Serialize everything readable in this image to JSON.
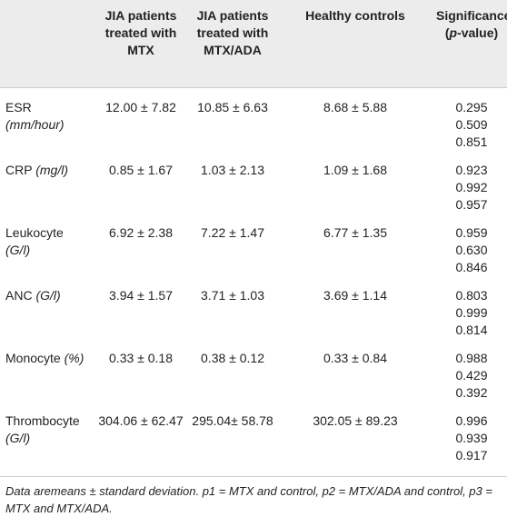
{
  "table": {
    "header": [
      "",
      "JIA patients treated with MTX",
      "JIA patients treated with MTX/ADA",
      "Healthy controls",
      {
        "text": "Significance",
        "open": "(",
        "italic": "p",
        "rest": "-value)"
      }
    ],
    "rows": [
      {
        "name": "ESR",
        "unit": "(mm/hour)",
        "cells": [
          "12.00 ± 7.82",
          "10.85 ± 6.63",
          "8.68 ± 5.88"
        ],
        "p": [
          "0.295",
          "0.509",
          "0.851"
        ]
      },
      {
        "name": "CRP",
        "unit": "(mg/l)",
        "cells": [
          "0.85 ± 1.67",
          "1.03 ± 2.13",
          "1.09 ± 1.68"
        ],
        "p": [
          "0.923",
          "0.992",
          "0.957"
        ]
      },
      {
        "name": "Leukocyte",
        "unit": "(G/l)",
        "cells": [
          "6.92 ± 2.38",
          "7.22 ± 1.47",
          "6.77 ± 1.35"
        ],
        "p": [
          "0.959",
          "0.630",
          "0.846"
        ]
      },
      {
        "name": "ANC",
        "unit": "(G/l)",
        "cells": [
          "3.94 ± 1.57",
          "3.71 ± 1.03",
          "3.69 ± 1.14"
        ],
        "p": [
          "0.803",
          "0.999",
          "0.814"
        ]
      },
      {
        "name": "Monocyte",
        "unit": "(%)",
        "cells": [
          "0.33 ± 0.18",
          "0.38 ± 0.12",
          "0.33 ± 0.84"
        ],
        "p": [
          "0.988",
          "0.429",
          "0.392"
        ]
      },
      {
        "name": "Thrombocyte",
        "unit": "(G/l)",
        "cells": [
          "304.06 ± 62.47",
          "295.04± 58.78",
          "302.05 ± 89.23"
        ],
        "p": [
          "0.996",
          "0.939",
          "0.917"
        ]
      }
    ],
    "footnote": "Data aremeans ± standard deviation. p1 = MTX and control, p2 = MTX/ADA and control, p3 = MTX and MTX/ADA."
  }
}
